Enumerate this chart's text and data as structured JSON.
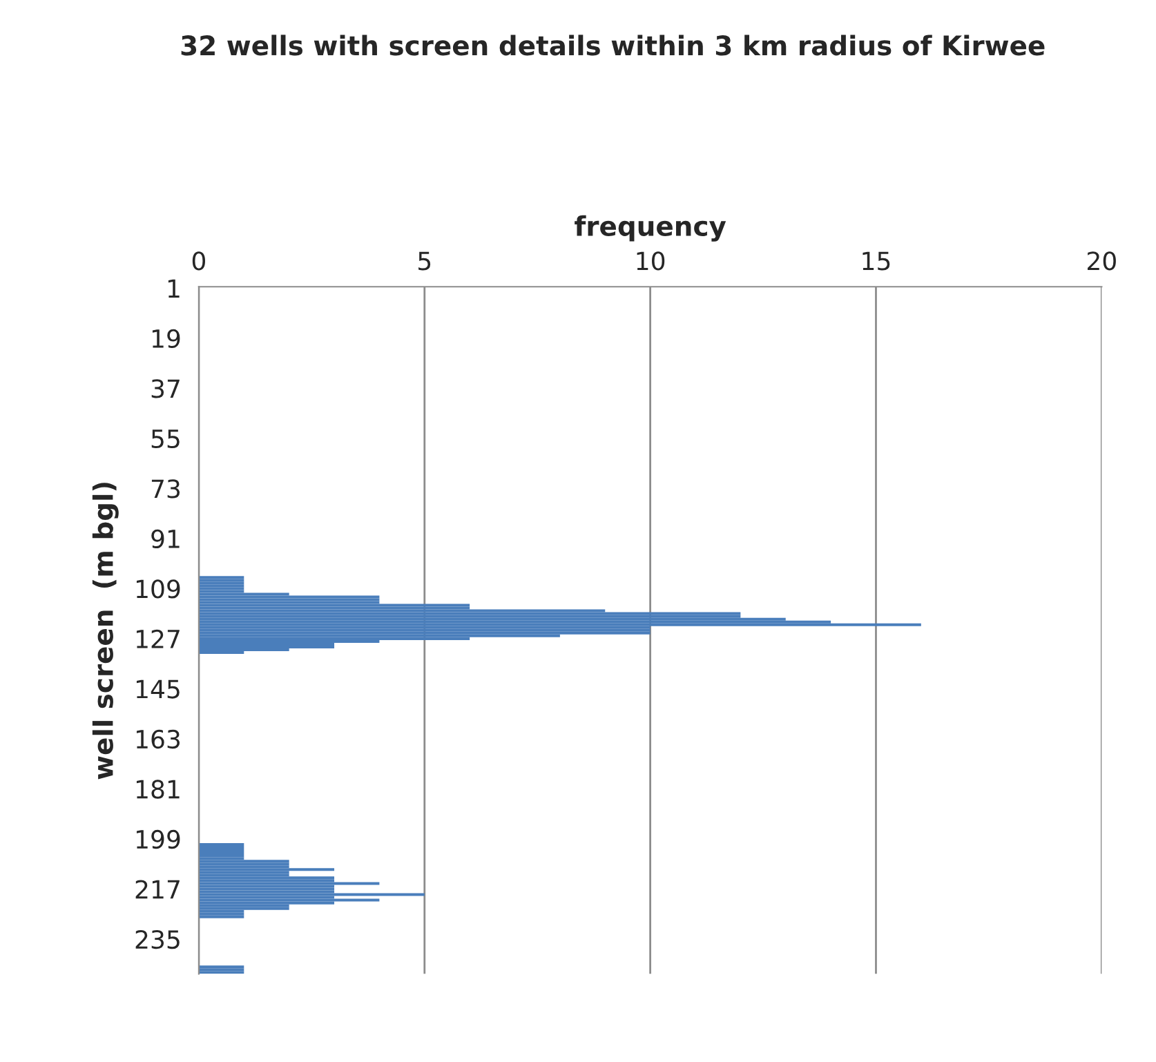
{
  "chart_data": {
    "type": "bar",
    "orientation": "horizontal",
    "title": "32 wells with screen details within 3 km radius of Kirwee",
    "xlabel": "frequency",
    "ylabel": "well screen  (m bgl)",
    "categories": [
      "1",
      null,
      null,
      null,
      null,
      null,
      null,
      null,
      null,
      null,
      null,
      null,
      null,
      null,
      null,
      null,
      null,
      null,
      "19",
      null,
      null,
      null,
      null,
      null,
      null,
      null,
      null,
      null,
      null,
      null,
      null,
      null,
      null,
      null,
      null,
      null,
      "37",
      null,
      null,
      null,
      null,
      null,
      null,
      null,
      null,
      null,
      null,
      null,
      null,
      null,
      null,
      null,
      null,
      null,
      "55",
      null,
      null,
      null,
      null,
      null,
      null,
      null,
      null,
      null,
      null,
      null,
      null,
      null,
      null,
      null,
      null,
      null,
      "73",
      null,
      null,
      null,
      null,
      null,
      null,
      null,
      null,
      null,
      null,
      null,
      null,
      null,
      null,
      null,
      null,
      null,
      "91",
      null,
      null,
      null,
      null,
      null,
      null,
      null,
      null,
      null,
      null,
      null,
      null,
      null,
      null,
      null,
      null,
      null,
      "109",
      null,
      null,
      null,
      null,
      null,
      null,
      null,
      null,
      null,
      null,
      null,
      null,
      null,
      null,
      null,
      null,
      null,
      "127",
      null,
      null,
      null,
      null,
      null,
      null,
      null,
      null,
      null,
      null,
      null,
      null,
      null,
      null,
      null,
      null,
      null,
      "145",
      null,
      null,
      null,
      null,
      null,
      null,
      null,
      null,
      null,
      null,
      null,
      null,
      null,
      null,
      null,
      null,
      null,
      "163",
      null,
      null,
      null,
      null,
      null,
      null,
      null,
      null,
      null,
      null,
      null,
      null,
      null,
      null,
      null,
      null,
      null,
      "181",
      null,
      null,
      null,
      null,
      null,
      null,
      null,
      null,
      null,
      null,
      null,
      null,
      null,
      null,
      null,
      null,
      null,
      "199",
      null,
      null,
      null,
      null,
      null,
      null,
      null,
      null,
      null,
      null,
      null,
      null,
      null,
      null,
      null,
      null,
      null,
      "217",
      null,
      null,
      null,
      null,
      null,
      null,
      null,
      null,
      null,
      null,
      null,
      null,
      null,
      null,
      null,
      null,
      null,
      "235",
      null,
      null,
      null,
      null,
      null,
      null,
      null,
      null,
      null,
      null,
      null,
      null
    ],
    "values": [
      0,
      0,
      0,
      0,
      0,
      0,
      0,
      0,
      0,
      0,
      0,
      0,
      0,
      0,
      0,
      0,
      0,
      0,
      0,
      0,
      0,
      0,
      0,
      0,
      0,
      0,
      0,
      0,
      0,
      0,
      0,
      0,
      0,
      0,
      0,
      0,
      0,
      0,
      0,
      0,
      0,
      0,
      0,
      0,
      0,
      0,
      0,
      0,
      0,
      0,
      0,
      0,
      0,
      0,
      0,
      0,
      0,
      0,
      0,
      0,
      0,
      0,
      0,
      0,
      0,
      0,
      0,
      0,
      0,
      0,
      0,
      0,
      0,
      0,
      0,
      0,
      0,
      0,
      0,
      0,
      0,
      0,
      0,
      0,
      0,
      0,
      0,
      0,
      0,
      0,
      0,
      0,
      0,
      0,
      0,
      0,
      0,
      0,
      0,
      0,
      0,
      0,
      0,
      0,
      1,
      1,
      1,
      1,
      1,
      1,
      2,
      4,
      4,
      4,
      6,
      6,
      9,
      12,
      12,
      13,
      14,
      16,
      10,
      10,
      10,
      8,
      6,
      4,
      3,
      3,
      2,
      1,
      0,
      0,
      0,
      0,
      0,
      0,
      0,
      0,
      0,
      0,
      0,
      0,
      0,
      0,
      0,
      0,
      0,
      0,
      0,
      0,
      0,
      0,
      0,
      0,
      0,
      0,
      0,
      0,
      0,
      0,
      0,
      0,
      0,
      0,
      0,
      0,
      0,
      0,
      0,
      0,
      0,
      0,
      0,
      0,
      0,
      0,
      0,
      0,
      0,
      0,
      0,
      0,
      0,
      0,
      0,
      0,
      0,
      0,
      0,
      0,
      0,
      0,
      0,
      0,
      0,
      0,
      0,
      0,
      1,
      1,
      1,
      1,
      1,
      1,
      2,
      2,
      2,
      3,
      2,
      2,
      3,
      3,
      4,
      3,
      3,
      3,
      5,
      3,
      4,
      3,
      2,
      2,
      1,
      1,
      1,
      0,
      0,
      0,
      0,
      0,
      0,
      0,
      0,
      0,
      0,
      0,
      0,
      0,
      0,
      0,
      0,
      0,
      1,
      1,
      1
    ],
    "color": "#4a7ebb",
    "xlim": [
      0,
      20
    ],
    "xticks": [
      0,
      5,
      10,
      15,
      20
    ],
    "grid": "x"
  }
}
